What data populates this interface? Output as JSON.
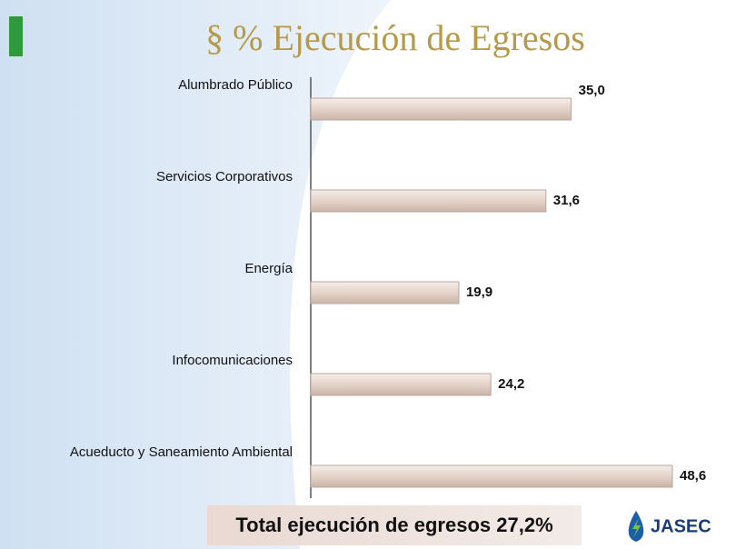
{
  "chart_data": {
    "type": "bar",
    "orientation": "horizontal",
    "title": "§ % Ejecución de Egresos",
    "categories": [
      "Alumbrado Público",
      "Servicios Corporativos",
      "Energía",
      "Infocomunicaciones",
      "Acueducto y Saneamiento Ambiental"
    ],
    "values": [
      35.0,
      31.6,
      19.9,
      24.2,
      48.6
    ],
    "value_labels": [
      "35,0",
      "31,6",
      "19,9",
      "24,2",
      "48,6"
    ],
    "color": "#eadcd4",
    "annotation": "Total ejecución de egresos 27,2%",
    "logo": "JASEC"
  }
}
